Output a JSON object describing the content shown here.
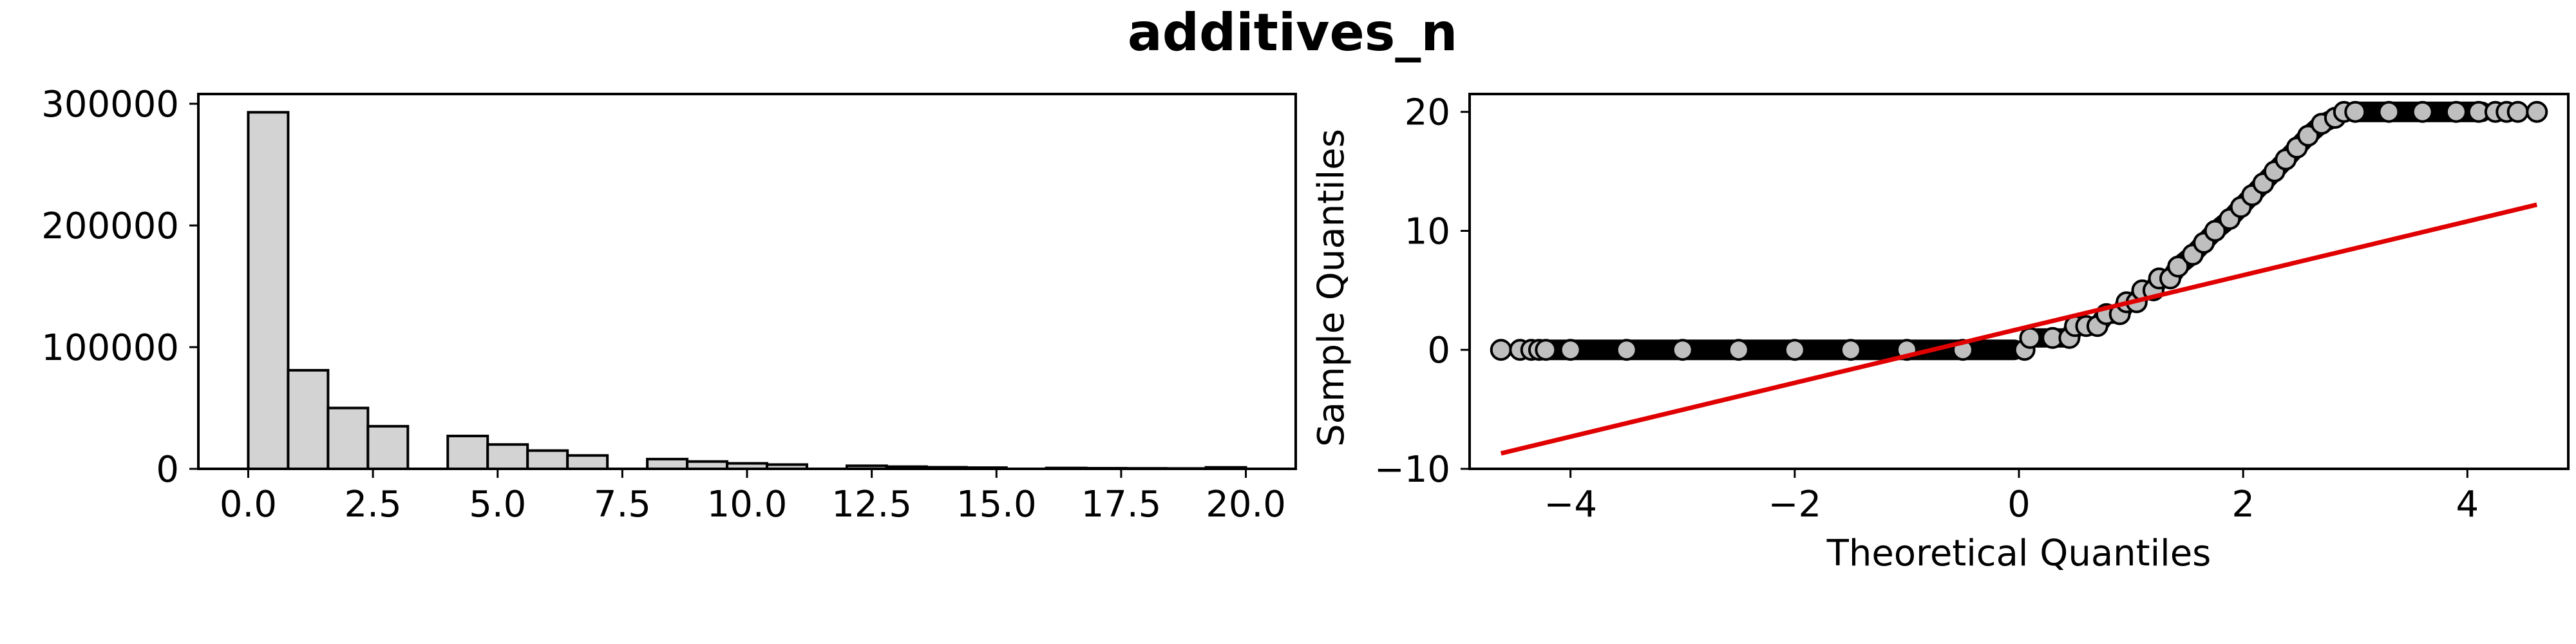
{
  "figure": {
    "title": "additives_n"
  },
  "chart_data": [
    {
      "type": "bar",
      "subtype": "histogram",
      "bin_edges": [
        0,
        0.8,
        1.6,
        2.4,
        3.2,
        4.0,
        4.8,
        5.6,
        6.4,
        7.2,
        8.0,
        8.8,
        9.6,
        10.4,
        11.2,
        12.0,
        12.8,
        13.6,
        14.4,
        15.2,
        16.0,
        16.8,
        17.6,
        18.4,
        19.2,
        20.0
      ],
      "values": [
        293000,
        81000,
        50000,
        35000,
        0,
        27000,
        20000,
        15000,
        11000,
        0,
        8000,
        6000,
        4500,
        3500,
        0,
        2500,
        1800,
        1300,
        1000,
        0,
        700,
        500,
        400,
        300,
        1200
      ],
      "fill_color": "#d3d3d3",
      "edge_color": "#000000",
      "xlim": [
        -1.0,
        21.0
      ],
      "ylim": [
        0,
        308000
      ],
      "xticks": [
        0,
        2.5,
        5,
        7.5,
        10,
        12.5,
        15,
        17.5,
        20
      ],
      "xtick_labels": [
        "0.0",
        "2.5",
        "5.0",
        "7.5",
        "10.0",
        "12.5",
        "15.0",
        "17.5",
        "20.0"
      ],
      "yticks": [
        0,
        100000,
        200000,
        300000
      ],
      "ytick_labels": [
        "0",
        "100000",
        "200000",
        "300000"
      ],
      "xlabel": "",
      "ylabel": ""
    },
    {
      "type": "scatter",
      "subtype": "qq-plot",
      "xlabel": "Theoretical Quantiles",
      "ylabel": "Sample Quantiles",
      "xlim": [
        -4.9,
        4.9
      ],
      "ylim": [
        -10,
        21.5
      ],
      "xticks": [
        -4,
        -2,
        0,
        2,
        4
      ],
      "xtick_labels": [
        "−4",
        "−2",
        "0",
        "2",
        "4"
      ],
      "yticks": [
        -10,
        0,
        10,
        20
      ],
      "ytick_labels": [
        "−10",
        "0",
        "10",
        "20"
      ],
      "marker_face": "#bfbfbf",
      "marker_edge": "#000000",
      "sample_points": [
        {
          "x": -4.62,
          "y": 0
        },
        {
          "x": -4.45,
          "y": 0
        },
        {
          "x": -4.35,
          "y": 0
        },
        {
          "x": -4.28,
          "y": 0
        },
        {
          "x": -4.22,
          "y": 0
        },
        {
          "x": -4.0,
          "y": 0
        },
        {
          "x": -3.5,
          "y": 0
        },
        {
          "x": -3.0,
          "y": 0
        },
        {
          "x": -2.5,
          "y": 0
        },
        {
          "x": -2.0,
          "y": 0
        },
        {
          "x": -1.5,
          "y": 0
        },
        {
          "x": -1.0,
          "y": 0
        },
        {
          "x": -0.5,
          "y": 0
        },
        {
          "x": 0.05,
          "y": 0
        },
        {
          "x": 0.1,
          "y": 1
        },
        {
          "x": 0.3,
          "y": 1
        },
        {
          "x": 0.45,
          "y": 1
        },
        {
          "x": 0.5,
          "y": 2
        },
        {
          "x": 0.6,
          "y": 2
        },
        {
          "x": 0.7,
          "y": 2
        },
        {
          "x": 0.78,
          "y": 3
        },
        {
          "x": 0.9,
          "y": 3
        },
        {
          "x": 0.96,
          "y": 4
        },
        {
          "x": 1.05,
          "y": 4
        },
        {
          "x": 1.1,
          "y": 5
        },
        {
          "x": 1.2,
          "y": 5
        },
        {
          "x": 1.25,
          "y": 6
        },
        {
          "x": 1.35,
          "y": 6
        },
        {
          "x": 1.42,
          "y": 7
        },
        {
          "x": 1.55,
          "y": 8
        },
        {
          "x": 1.65,
          "y": 9
        },
        {
          "x": 1.75,
          "y": 10
        },
        {
          "x": 1.88,
          "y": 11
        },
        {
          "x": 1.98,
          "y": 12
        },
        {
          "x": 2.08,
          "y": 13
        },
        {
          "x": 2.18,
          "y": 14
        },
        {
          "x": 2.28,
          "y": 15
        },
        {
          "x": 2.38,
          "y": 16
        },
        {
          "x": 2.48,
          "y": 17
        },
        {
          "x": 2.58,
          "y": 18
        },
        {
          "x": 2.7,
          "y": 19
        },
        {
          "x": 2.82,
          "y": 19.5
        },
        {
          "x": 2.9,
          "y": 20
        },
        {
          "x": 3.0,
          "y": 20
        },
        {
          "x": 3.3,
          "y": 20
        },
        {
          "x": 3.6,
          "y": 20
        },
        {
          "x": 3.9,
          "y": 20
        },
        {
          "x": 4.1,
          "y": 20
        },
        {
          "x": 4.25,
          "y": 20
        },
        {
          "x": 4.35,
          "y": 20
        },
        {
          "x": 4.45,
          "y": 20
        },
        {
          "x": 4.62,
          "y": 20
        }
      ],
      "reference_line": {
        "color": "#e00000",
        "points": [
          {
            "x": -4.62,
            "y": -8.7
          },
          {
            "x": 4.62,
            "y": 12.2
          }
        ]
      }
    }
  ]
}
